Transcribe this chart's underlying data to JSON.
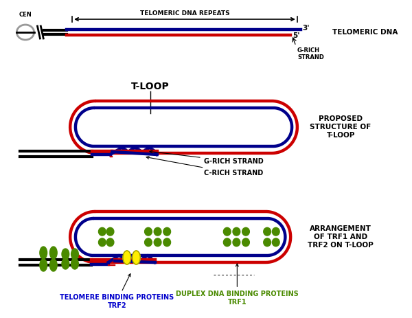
{
  "bg_color": "#ffffff",
  "red_color": "#cc0000",
  "blue_color": "#00008B",
  "black_color": "#000000",
  "green_color": "#4a8a00",
  "yellow_color": "#ffee00",
  "gray_color": "#999999",
  "label_telomeric_dna": "TELOMERIC DNA",
  "label_telomeric_repeats": "TELOMERIC DNA REPEATS",
  "label_3prime": "3'",
  "label_5prime": "5'",
  "label_g_rich_p1": "G-RICH\nSTRAND",
  "label_cen": "CEN",
  "label_tloop": "T-LOOP",
  "label_proposed": "PROPOSED\nSTRUCTURE OF\nT-LOOP",
  "label_g_rich_strand": "G-RICH STRAND",
  "label_c_rich_strand": "C-RICH STRAND",
  "label_arrangement": "ARRANGEMENT\nOF TRF1 AND\nTRF2 ON T-LOOP",
  "label_telomere_binding": "TELOMERE BINDING PROTEINS\nTRF2",
  "label_duplex_binding": "DUPLEX DNA BINDING PROTEINS\nTRF1"
}
